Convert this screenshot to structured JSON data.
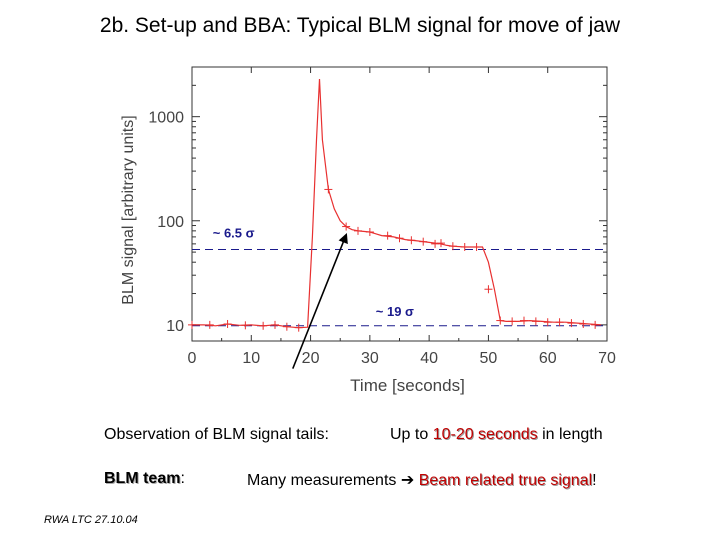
{
  "slide": {
    "title": "2b. Set-up and BBA: Typical BLM signal for move of jaw",
    "observation_label": "Observation of BLM signal tails:",
    "up_to_prefix": "Up to ",
    "up_to_highlight": "10-20 seconds",
    "up_to_suffix": " in length",
    "team_label": "BLM team",
    "team_colon": ":",
    "measurements_prefix": "Many measurements ",
    "arrow_glyph": "➔",
    "measurements_highlight": "Beam related true signal",
    "measurements_suffix": "!",
    "footer": "RWA LTC 27.10.04"
  },
  "colors": {
    "series": "#e83030",
    "reference": "#1a1a8c",
    "highlight": "#c00000"
  },
  "chart_data": {
    "type": "line",
    "title": "",
    "xlabel": "Time [seconds]",
    "ylabel": "BLM signal [arbitrary units]",
    "xlim": [
      0,
      70
    ],
    "ylim": [
      7,
      3000
    ],
    "yscale": "log",
    "xticks": [
      0,
      10,
      20,
      30,
      40,
      50,
      60,
      70
    ],
    "yticks": [
      10,
      100,
      1000
    ],
    "grid": false,
    "series": [
      {
        "name": "",
        "points": [
          [
            0,
            10
          ],
          [
            2,
            10
          ],
          [
            4,
            9.8
          ],
          [
            6,
            10.2
          ],
          [
            8,
            9.9
          ],
          [
            10,
            10
          ],
          [
            12,
            9.8
          ],
          [
            14,
            10
          ],
          [
            16,
            9.6
          ],
          [
            18,
            9.4
          ],
          [
            19.5,
            9.5
          ],
          [
            20.3,
            70
          ],
          [
            21,
            600
          ],
          [
            21.5,
            2300
          ],
          [
            22,
            600
          ],
          [
            23,
            200
          ],
          [
            24,
            130
          ],
          [
            25,
            100
          ],
          [
            26,
            88
          ],
          [
            27,
            82
          ],
          [
            28,
            80
          ],
          [
            30,
            78
          ],
          [
            31,
            75
          ],
          [
            32,
            72
          ],
          [
            34,
            70
          ],
          [
            36,
            66
          ],
          [
            38,
            64
          ],
          [
            40,
            62
          ],
          [
            42,
            60
          ],
          [
            43,
            58
          ],
          [
            44,
            57
          ],
          [
            46,
            56
          ],
          [
            47,
            56
          ],
          [
            48,
            56
          ],
          [
            49,
            56
          ],
          [
            50,
            40
          ],
          [
            51,
            22
          ],
          [
            52,
            11
          ],
          [
            53,
            10.8
          ],
          [
            55,
            10.8
          ],
          [
            57,
            11
          ],
          [
            59,
            10.8
          ],
          [
            61,
            10.6
          ],
          [
            63,
            10.6
          ],
          [
            65,
            10.4
          ],
          [
            67,
            10.2
          ],
          [
            69,
            10
          ]
        ],
        "markers": [
          [
            0,
            10
          ],
          [
            3,
            10
          ],
          [
            6,
            10.2
          ],
          [
            9,
            9.9
          ],
          [
            12,
            9.8
          ],
          [
            14,
            10
          ],
          [
            16,
            9.6
          ],
          [
            18,
            9.4
          ],
          [
            23,
            200
          ],
          [
            26,
            88
          ],
          [
            28,
            80
          ],
          [
            30,
            78
          ],
          [
            33,
            72
          ],
          [
            35,
            68
          ],
          [
            37,
            65
          ],
          [
            39,
            63
          ],
          [
            41,
            60
          ],
          [
            42,
            61
          ],
          [
            44,
            57
          ],
          [
            46,
            56
          ],
          [
            48,
            56
          ],
          [
            50,
            22
          ],
          [
            52,
            11
          ],
          [
            54,
            10.8
          ],
          [
            56,
            11
          ],
          [
            58,
            10.8
          ],
          [
            60,
            10.6
          ],
          [
            62,
            10.6
          ],
          [
            64,
            10.4
          ],
          [
            66,
            10.2
          ],
          [
            68,
            10
          ]
        ]
      }
    ],
    "reference_lines": [
      {
        "y": 53,
        "label": "~ 6.5 σ"
      },
      {
        "y": 9.8,
        "label": "~ 19 σ"
      }
    ],
    "annotation_arrow": {
      "from": [
        17,
        3.8
      ],
      "to": [
        26,
        80
      ]
    }
  }
}
